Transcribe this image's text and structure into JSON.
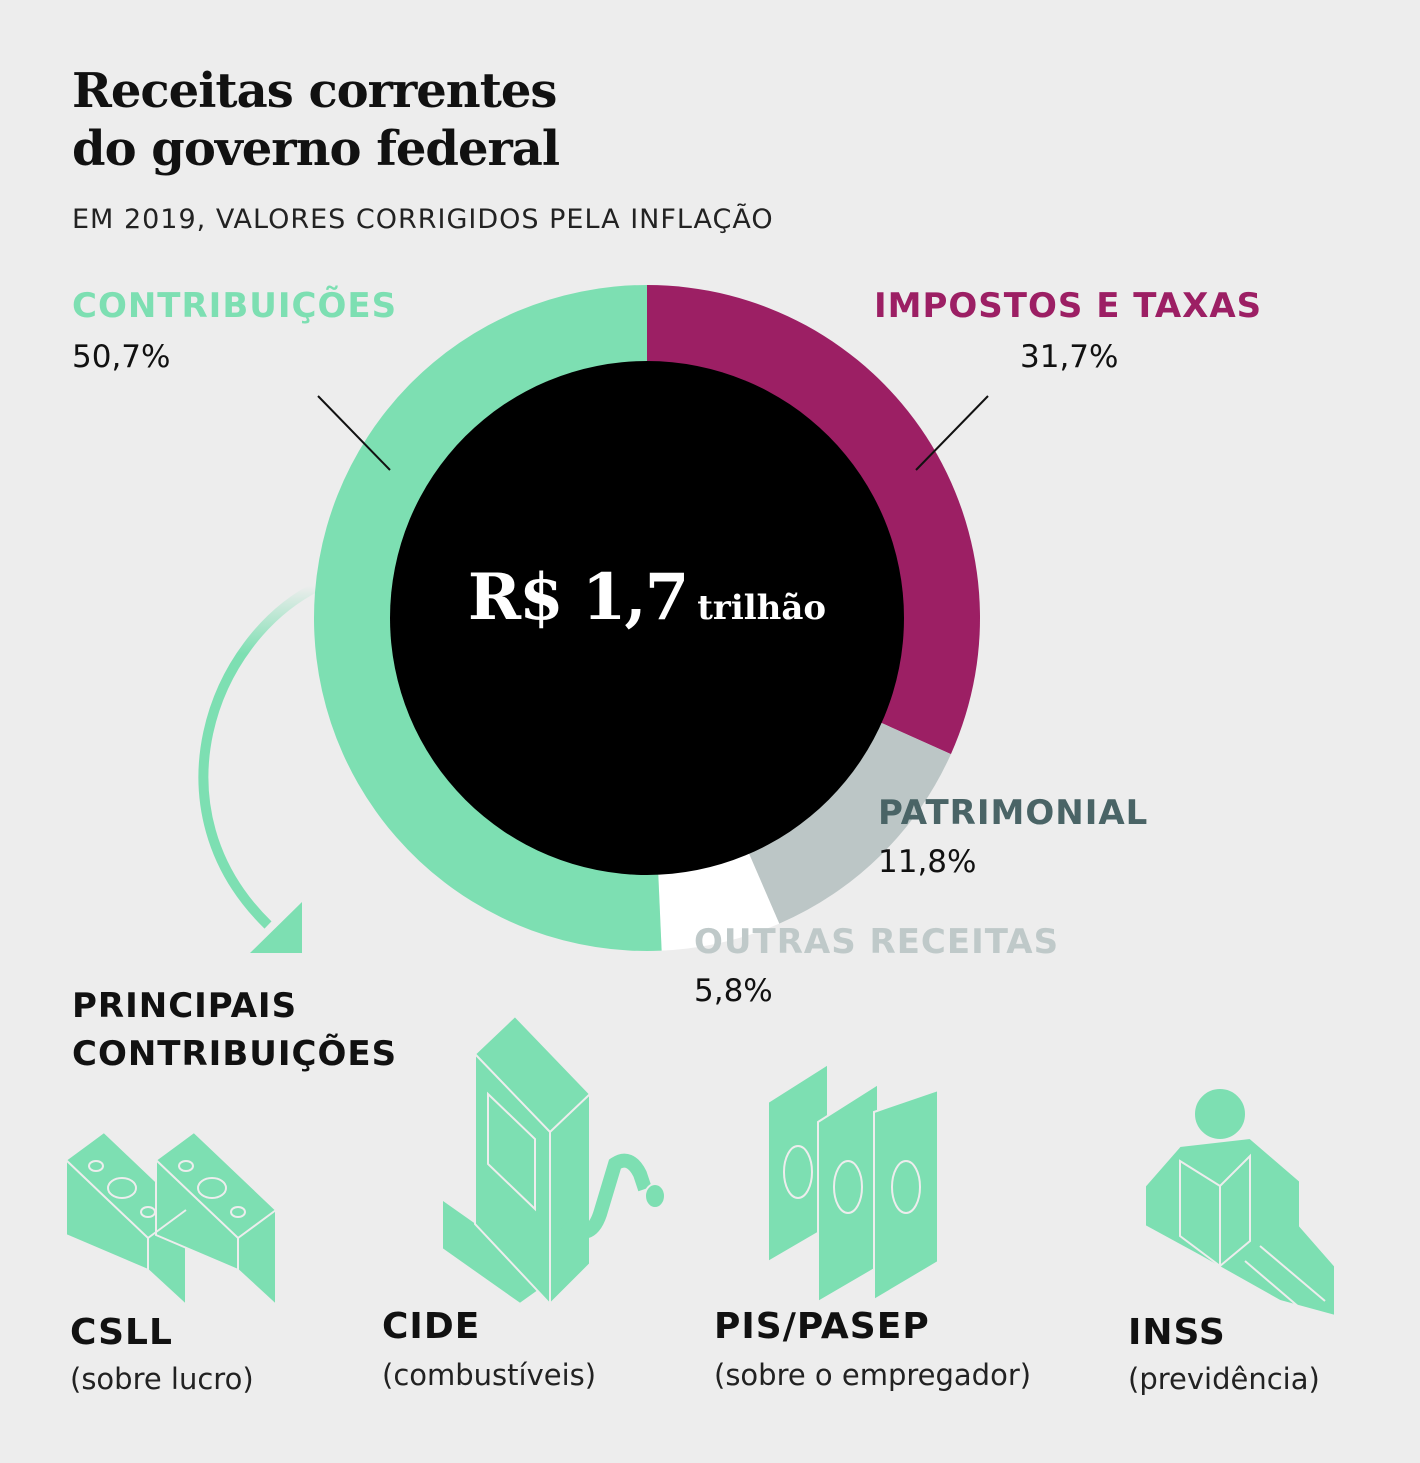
{
  "title_line1": "Receitas correntes",
  "title_line2": "do governo federal",
  "subtitle": "EM 2019, VALORES CORRIGIDOS PELA INFLAÇÃO",
  "center": {
    "value": "R$ 1,7",
    "unit": "trilhão"
  },
  "colors": {
    "contribuicoes": "#7ddfb2",
    "impostos": "#9c1f64",
    "patrimonial": "#bcc6c6",
    "outras": "#ffffff",
    "patrimonial_label": "#4a6466",
    "outras_label": "#bfc9c9",
    "center": "#000000"
  },
  "chart_data": {
    "type": "pie",
    "donut": true,
    "slices": [
      {
        "name": "IMPOSTOS E TAXAS",
        "value": 31.7,
        "label": "31,7%"
      },
      {
        "name": "PATRIMONIAL",
        "value": 11.8,
        "label": "11,8%"
      },
      {
        "name": "OUTRAS RECEITAS",
        "value": 5.8,
        "label": "5,8%"
      },
      {
        "name": "CONTRIBUIÇÕES",
        "value": 50.7,
        "label": "50,7%"
      }
    ]
  },
  "principais_line1": "PRINCIPAIS",
  "principais_line2": "CONTRIBUIÇÕES",
  "items": [
    {
      "name": "CSLL",
      "desc": "(sobre lucro)",
      "icon": "money-bills-icon"
    },
    {
      "name": "CIDE",
      "desc": "(combustíveis)",
      "icon": "fuel-pump-icon"
    },
    {
      "name": "PIS/PASEP",
      "desc": "(sobre o empregador)",
      "icon": "banknotes-icon"
    },
    {
      "name": "INSS",
      "desc": "(previdência)",
      "icon": "retiree-icon"
    }
  ]
}
